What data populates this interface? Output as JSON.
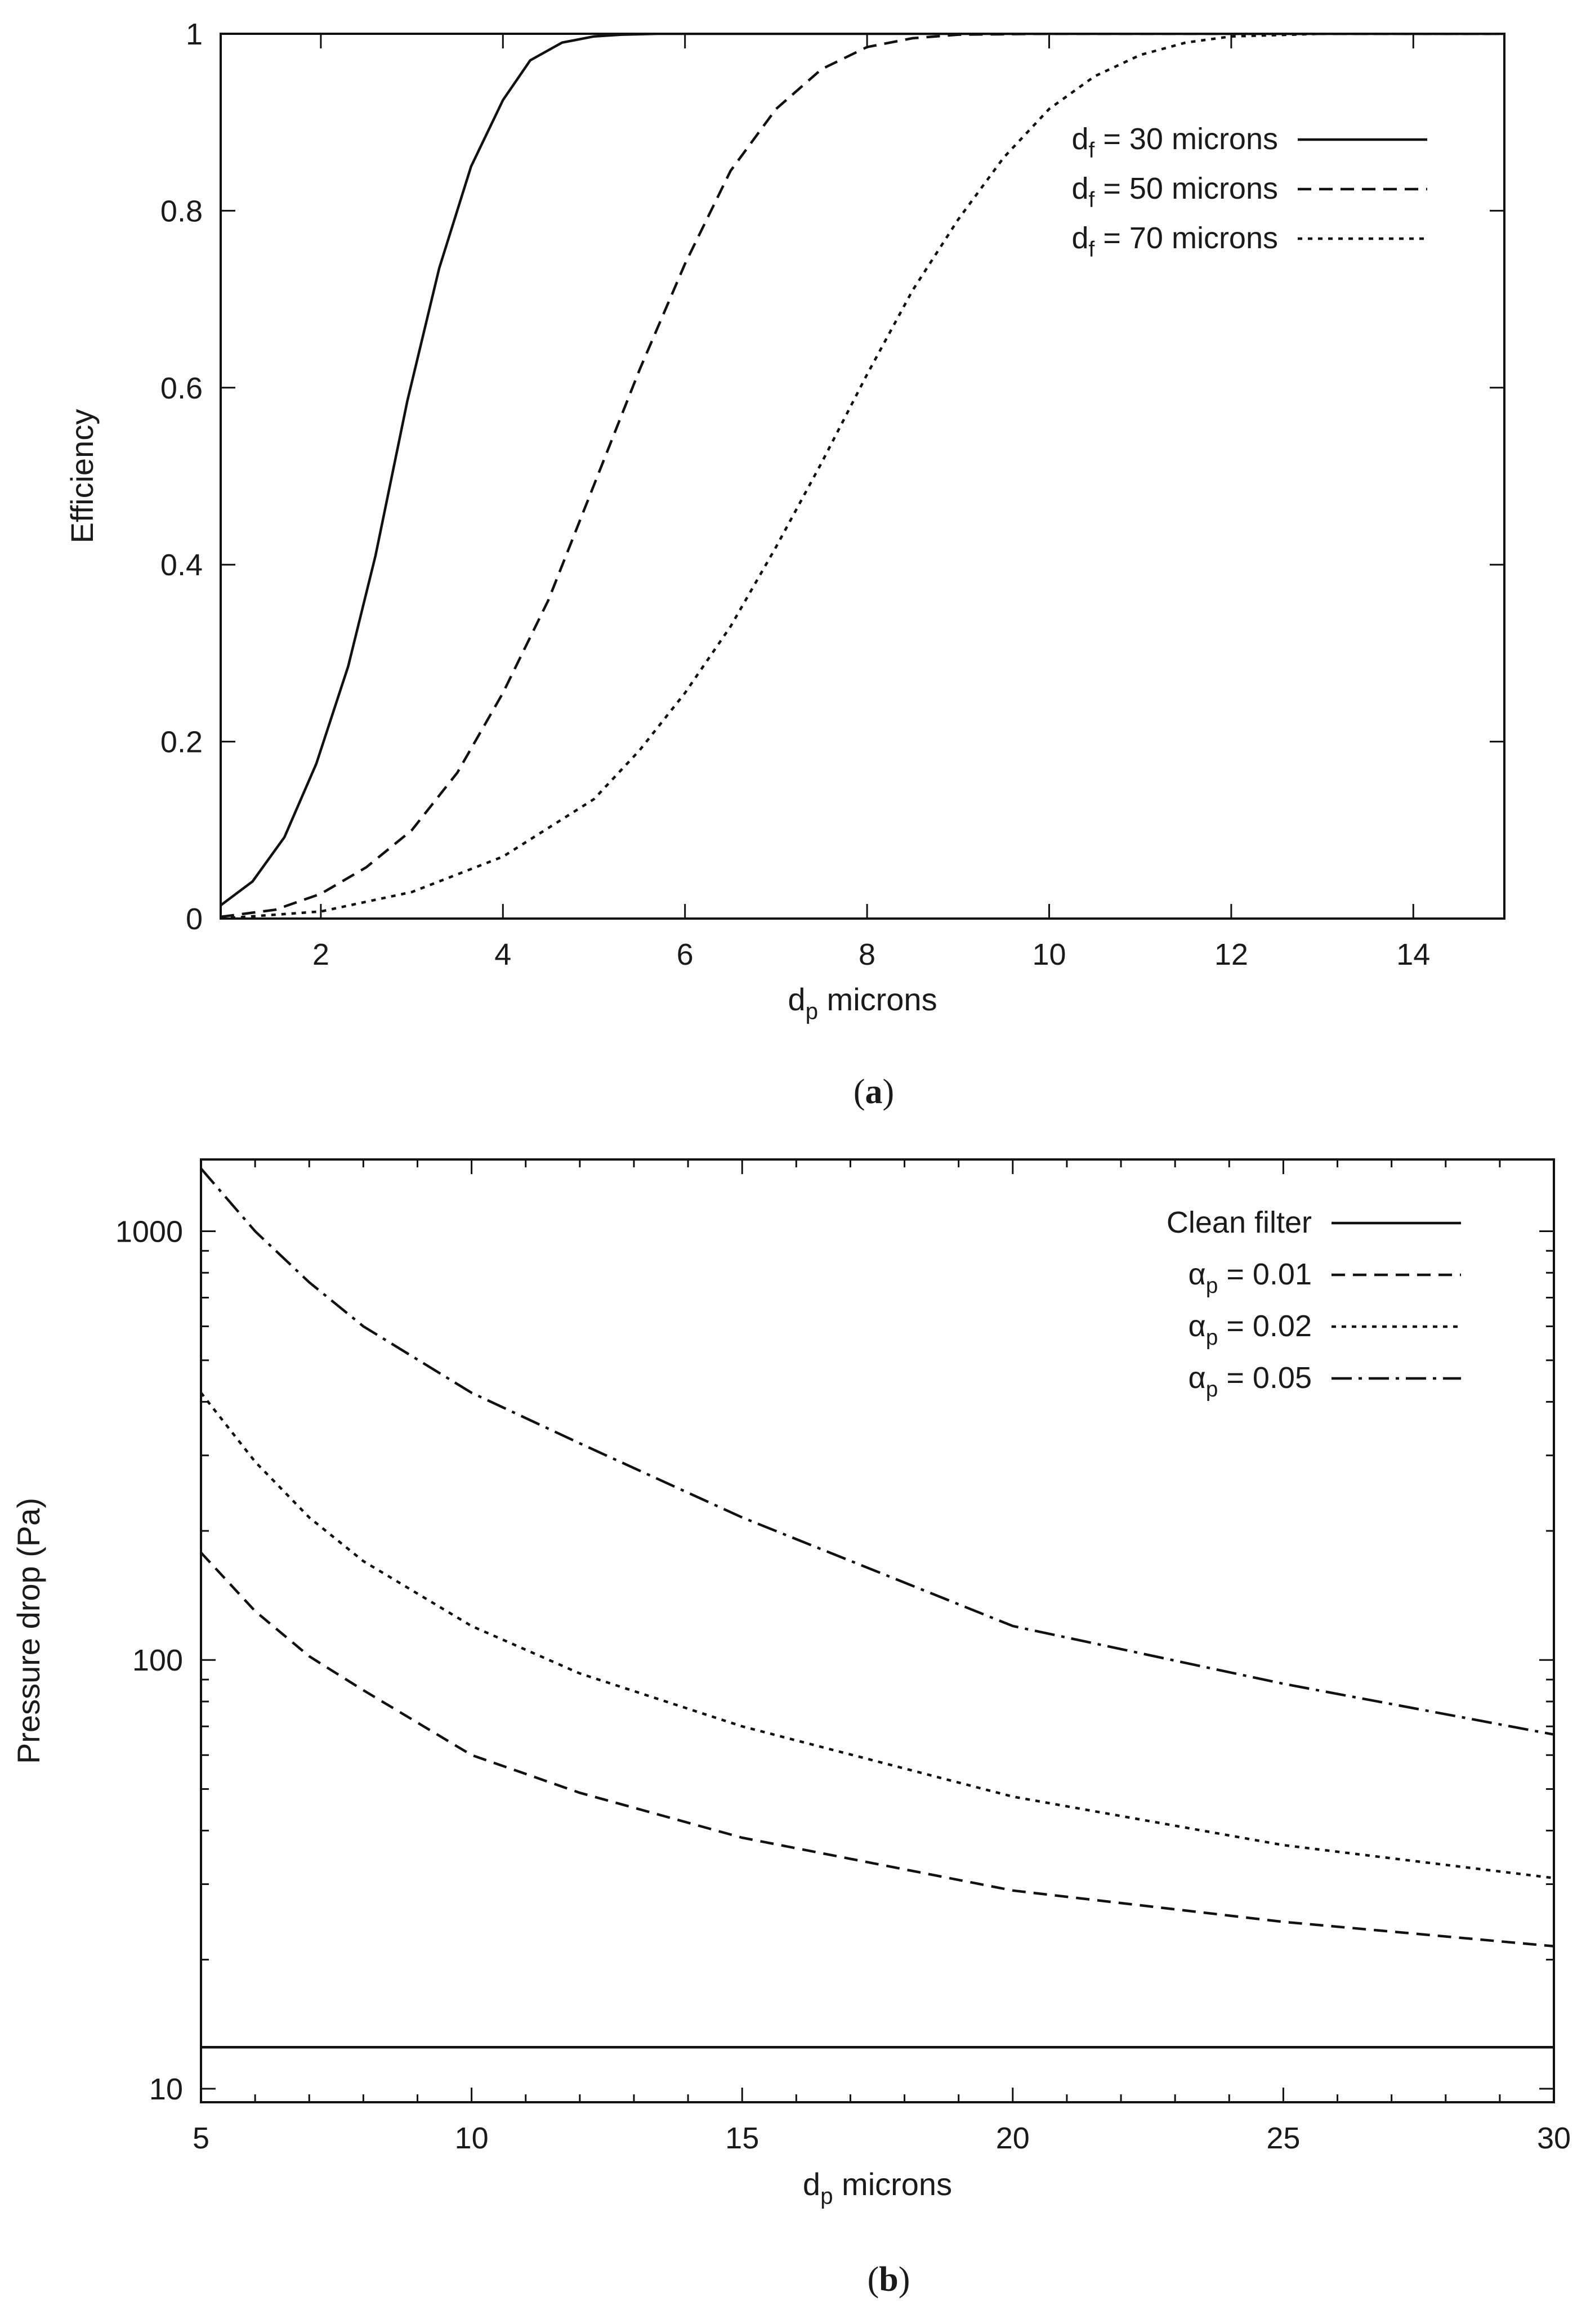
{
  "chart_data": [
    {
      "type": "line",
      "panel_label": "a",
      "title": "",
      "xlabel": {
        "main": "d",
        "sub": "p",
        "rest": " microns"
      },
      "ylabel": "Efficiency",
      "xlim": [
        0.9,
        15
      ],
      "ylim": [
        0,
        1
      ],
      "xscale": "linear",
      "yscale": "linear",
      "grid": false,
      "legend_position": "top-right",
      "xticks": [
        {
          "value": 2,
          "label": "2"
        },
        {
          "value": 4,
          "label": "4"
        },
        {
          "value": 6,
          "label": "6"
        },
        {
          "value": 8,
          "label": "8"
        },
        {
          "value": 10,
          "label": "10"
        },
        {
          "value": 12,
          "label": "12"
        },
        {
          "value": 14,
          "label": "14"
        }
      ],
      "yticks": [
        {
          "value": 0,
          "label": "0"
        },
        {
          "value": 0.2,
          "label": "0.2"
        },
        {
          "value": 0.4,
          "label": "0.4"
        },
        {
          "value": 0.6,
          "label": "0.6"
        },
        {
          "value": 0.8,
          "label": "0.8"
        },
        {
          "value": 1,
          "label": "1"
        }
      ],
      "series": [
        {
          "legend": {
            "main": "d",
            "sub": "f",
            "rest": " = 30 microns"
          },
          "dash": "solid",
          "x": [
            0.9,
            1.25,
            1.6,
            1.95,
            2.3,
            2.6,
            2.95,
            3.3,
            3.65,
            4.0,
            4.3,
            4.65,
            5.0,
            5.3,
            5.7,
            6.5,
            8,
            10,
            12,
            15
          ],
          "y": [
            0.015,
            0.042,
            0.092,
            0.175,
            0.285,
            0.41,
            0.585,
            0.735,
            0.85,
            0.925,
            0.97,
            0.99,
            0.997,
            0.999,
            1,
            1,
            1,
            1,
            1,
            1
          ]
        },
        {
          "legend": {
            "main": "d",
            "sub": "f",
            "rest": " = 50 microns"
          },
          "dash": "dashed",
          "x": [
            0.9,
            1.5,
            2.0,
            2.5,
            3.0,
            3.5,
            4.0,
            4.5,
            5.0,
            5.5,
            6.0,
            6.5,
            7.0,
            7.5,
            8.0,
            8.5,
            9.0,
            10.0,
            12,
            15
          ],
          "y": [
            0.002,
            0.01,
            0.028,
            0.058,
            0.1,
            0.165,
            0.255,
            0.36,
            0.49,
            0.62,
            0.74,
            0.845,
            0.915,
            0.96,
            0.985,
            0.995,
            0.999,
            1,
            1,
            1
          ]
        },
        {
          "legend": {
            "main": "d",
            "sub": "f",
            "rest": " = 70 microns"
          },
          "dash": "dotted",
          "x": [
            0.9,
            2.0,
            3.0,
            4.0,
            5.0,
            5.5,
            6.0,
            6.5,
            7.0,
            7.5,
            8.0,
            8.5,
            9.0,
            9.5,
            10.0,
            10.5,
            11.0,
            11.5,
            12.0,
            13.0,
            15
          ],
          "y": [
            0.0,
            0.008,
            0.03,
            0.07,
            0.135,
            0.19,
            0.255,
            0.33,
            0.42,
            0.515,
            0.615,
            0.71,
            0.79,
            0.86,
            0.915,
            0.952,
            0.976,
            0.99,
            0.997,
            1,
            1
          ]
        }
      ]
    },
    {
      "type": "line",
      "panel_label": "b",
      "title": "",
      "xlabel": {
        "main": "d",
        "sub": "p",
        "rest": " microns"
      },
      "ylabel": "Pressure drop (Pa)",
      "xlim": [
        5,
        30
      ],
      "ylim": [
        9.3,
        1470
      ],
      "xscale": "linear",
      "yscale": "log",
      "grid": false,
      "legend_position": "top-right",
      "xticks": [
        {
          "value": 5,
          "label": "5"
        },
        {
          "value": 10,
          "label": "10"
        },
        {
          "value": 15,
          "label": "15"
        },
        {
          "value": 20,
          "label": "20"
        },
        {
          "value": 25,
          "label": "25"
        },
        {
          "value": 30,
          "label": "30"
        }
      ],
      "yticks": [
        {
          "value": 10,
          "label": "10"
        },
        {
          "value": 100,
          "label": "100"
        },
        {
          "value": 1000,
          "label": "1000"
        }
      ],
      "series": [
        {
          "legend": {
            "main": "Clean filter",
            "sub": "",
            "rest": ""
          },
          "dash": "solid",
          "x": [
            5,
            30
          ],
          "y": [
            12.5,
            12.5
          ]
        },
        {
          "legend": {
            "main": "α",
            "sub": "p",
            "rest": " = 0.01"
          },
          "dash": "dashed",
          "x": [
            5,
            6,
            7,
            8,
            10,
            12,
            15,
            20,
            25,
            30
          ],
          "y": [
            178,
            130,
            102,
            85,
            60,
            49,
            38.5,
            29,
            24.5,
            21.5
          ]
        },
        {
          "legend": {
            "main": "α",
            "sub": "p",
            "rest": " = 0.02"
          },
          "dash": "dotted",
          "x": [
            5,
            6,
            7,
            8,
            10,
            12,
            15,
            20,
            25,
            30
          ],
          "y": [
            420,
            290,
            215,
            170,
            120,
            93,
            70,
            48,
            37,
            31
          ]
        },
        {
          "legend": {
            "main": "α",
            "sub": "p",
            "rest": " = 0.05"
          },
          "dash": "dashdot",
          "x": [
            5,
            6,
            7,
            8,
            10,
            12,
            15,
            20,
            25,
            30
          ],
          "y": [
            1400,
            1000,
            760,
            600,
            420,
            320,
            215,
            120,
            88,
            67
          ]
        }
      ]
    }
  ]
}
